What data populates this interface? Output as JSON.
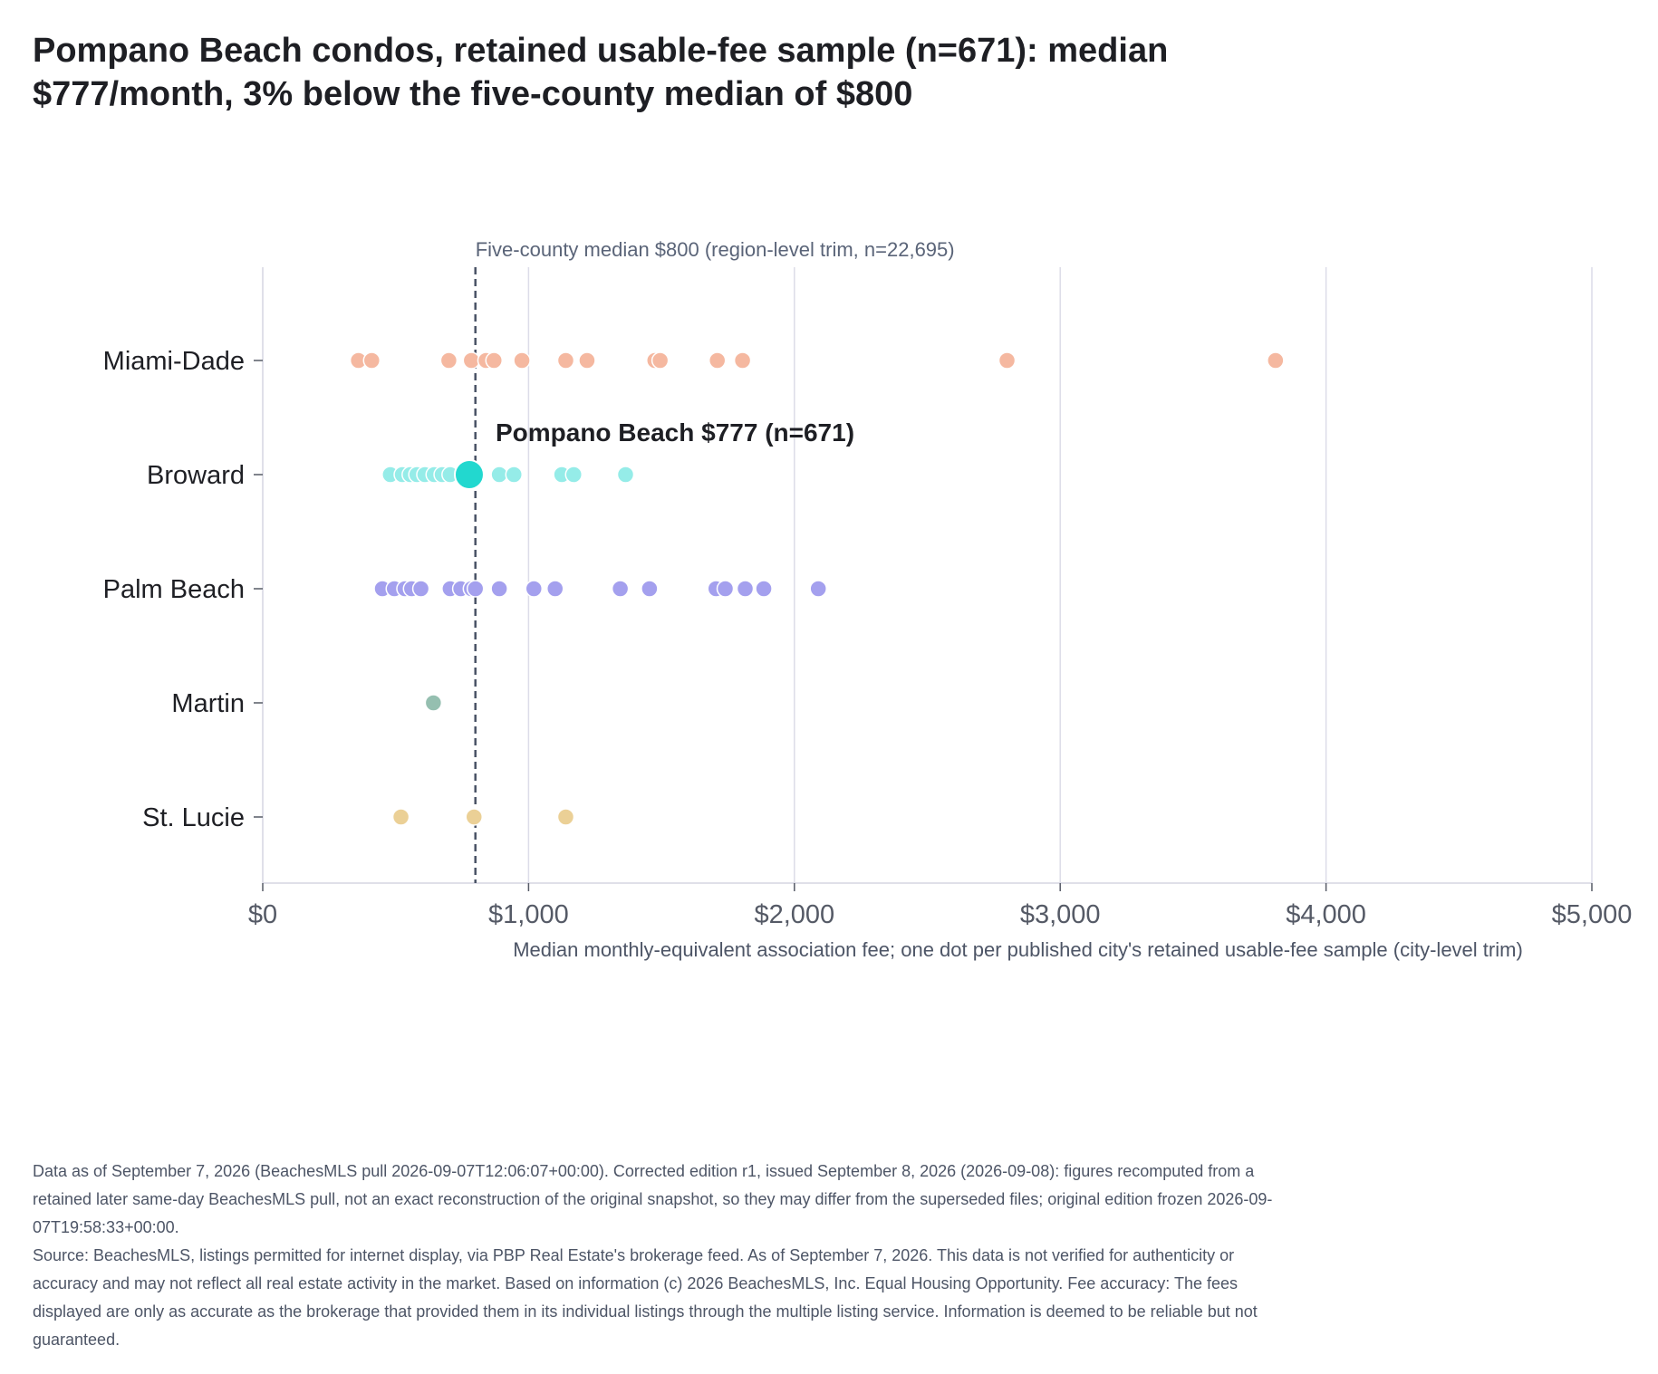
{
  "title": {
    "line1": "Pompano Beach condos, retained usable-fee sample (n=671): median",
    "line2": "$777/month, 3% below the five-county median of $800"
  },
  "footer": {
    "note": "Data as of September 7, 2026 (BeachesMLS pull 2026-09-07T12:06:07+00:00). Corrected edition r1, issued September 8, 2026 (2026-09-08): figures recomputed from a retained later same-day BeachesMLS pull, not an exact reconstruction of the original snapshot, so they may differ from the superseded files; original edition frozen 2026-09-07T19:58:33+00:00.",
    "source": "Source: BeachesMLS, listings permitted for internet display, via PBP Real Estate's brokerage feed. As of September 7, 2026. This data is not verified for authenticity or accuracy and may not reflect all real estate activity in the market. Based on information (c) 2026 BeachesMLS, Inc. Equal Housing Opportunity. Fee accuracy: The fees displayed are only as accurate as the brokerage that provided them in its individual listings through the multiple listing service. Information is deemed to be reliable but not guaranteed."
  },
  "chart_data": {
    "type": "scatter",
    "xlabel": "Median monthly-equivalent association fee; one dot per published city's retained usable-fee sample (city-level trim)",
    "xlim": [
      0,
      5000
    ],
    "xticks": [
      0,
      1000,
      2000,
      3000,
      4000,
      5000
    ],
    "xtick_labels": [
      "$0",
      "$1,000",
      "$2,000",
      "$3,000",
      "$4,000",
      "$5,000"
    ],
    "grid": true,
    "categories": [
      "Miami-Dade",
      "Broward",
      "Palm Beach",
      "Martin",
      "St. Lucie"
    ],
    "series": [
      {
        "category": "Miami-Dade",
        "color": "#f5b8a0",
        "values": [
          360,
          410,
          700,
          785,
          840,
          870,
          975,
          1140,
          1220,
          1475,
          1495,
          1710,
          1805,
          2800,
          3810
        ]
      },
      {
        "category": "Broward",
        "color": "#95ece8",
        "values": [
          480,
          525,
          555,
          580,
          610,
          645,
          675,
          705,
          890,
          945,
          1125,
          1170,
          1365
        ]
      },
      {
        "category": "Palm Beach",
        "color": "#a4a0ee",
        "values": [
          450,
          495,
          535,
          560,
          595,
          705,
          745,
          785,
          800,
          890,
          1020,
          1100,
          1345,
          1455,
          1705,
          1740,
          1815,
          1885,
          2090
        ]
      },
      {
        "category": "Martin",
        "color": "#95bfb0",
        "values": [
          642
        ]
      },
      {
        "category": "St. Lucie",
        "color": "#ebd096",
        "values": [
          520,
          795,
          1140
        ]
      }
    ],
    "highlight": {
      "category": "Broward",
      "value": 777,
      "color": "#22d8cf",
      "label": "Pompano Beach $777 (n=671)"
    },
    "reference_line": {
      "value": 800,
      "label": "Five-county median $800 (region-level trim, n=22,695)"
    }
  }
}
